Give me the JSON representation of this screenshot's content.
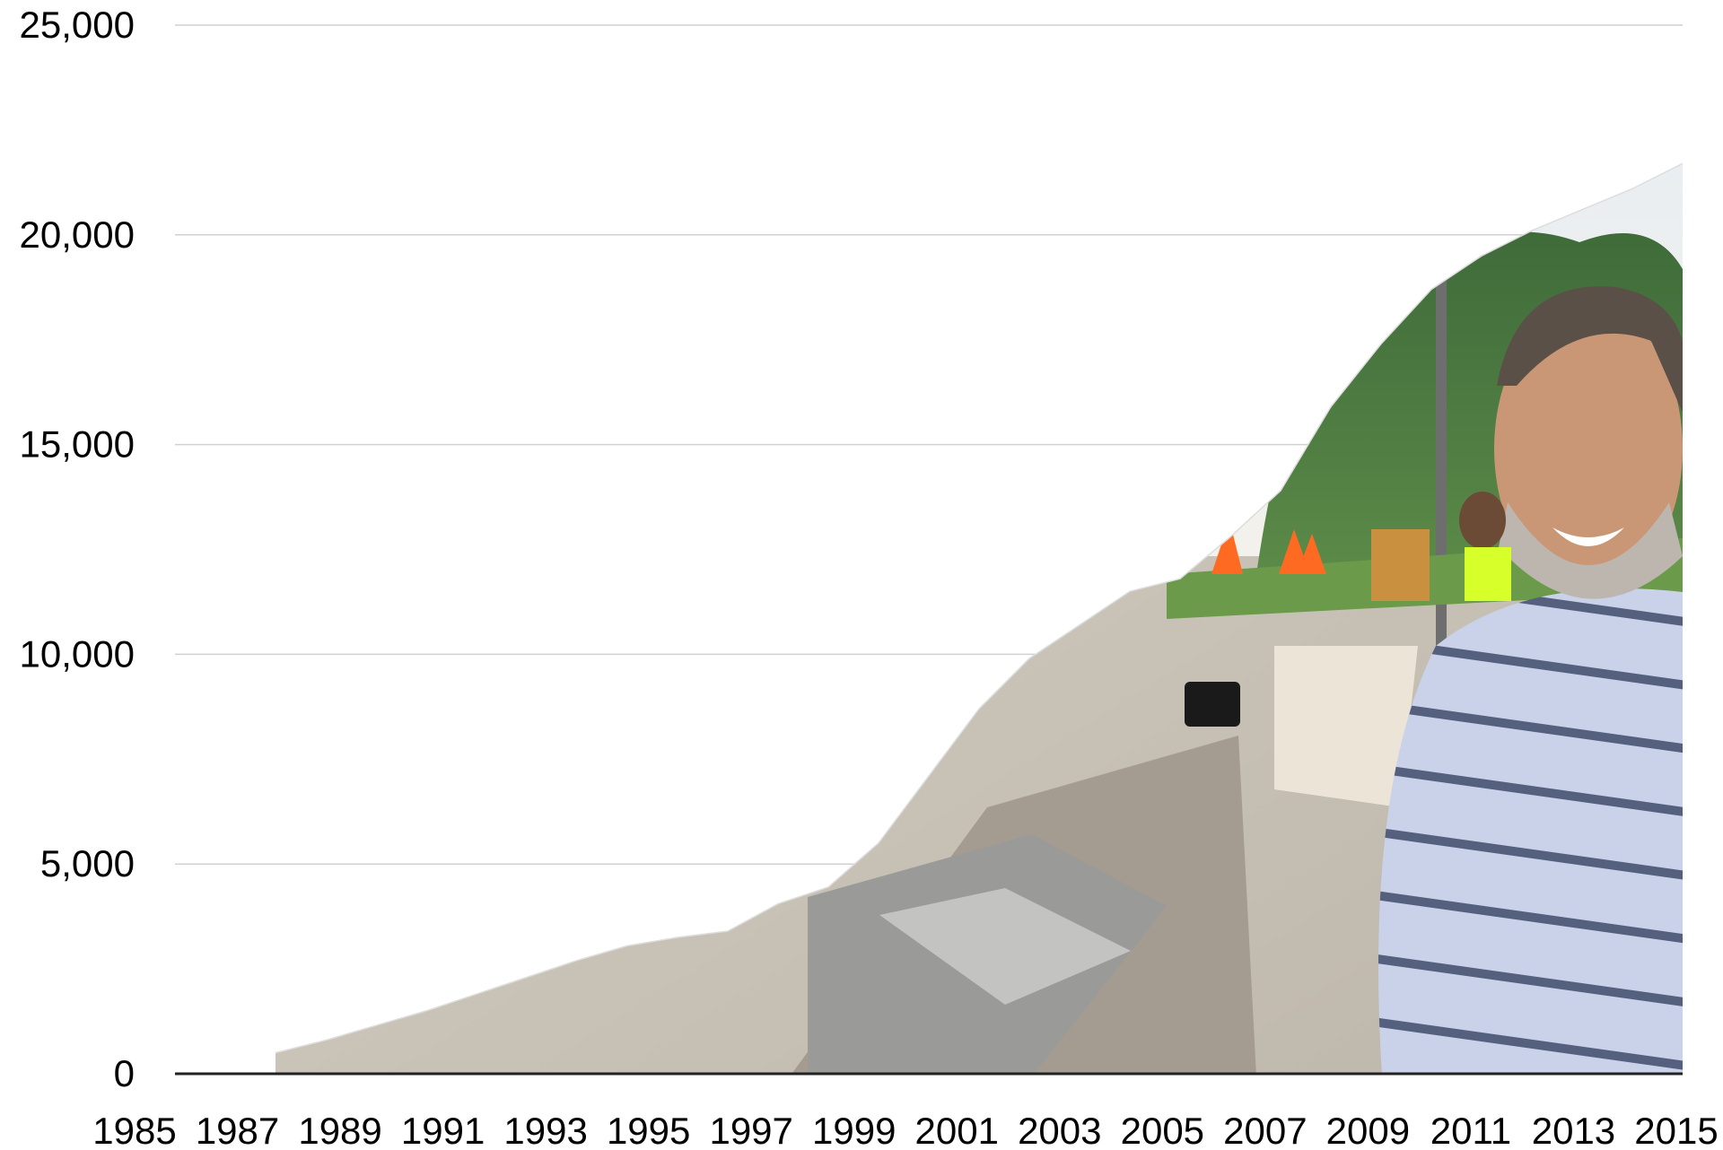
{
  "chart_data": {
    "type": "area",
    "title": "",
    "xlabel": "",
    "ylabel": "",
    "x_tick_labels": [
      "1985",
      "1987",
      "1989",
      "1991",
      "1993",
      "1995",
      "1997",
      "1999",
      "2001",
      "2003",
      "2005",
      "2007",
      "2009",
      "2011",
      "2013",
      "2015"
    ],
    "y_tick_labels": [
      "0",
      "5,000",
      "10,000",
      "15,000",
      "20,000",
      "25,000"
    ],
    "xlim": [
      1985,
      2015
    ],
    "ylim": [
      0,
      25000
    ],
    "y_ticks": [
      0,
      5000,
      10000,
      15000,
      20000,
      25000
    ],
    "grid": true,
    "fill_style": "photo of a smiling man at a sidewalk construction site with traffic cones and trees",
    "series": [
      {
        "x": [
          1987,
          1988,
          1989,
          1990,
          1991,
          1992,
          1993,
          1994,
          1995,
          1996,
          1997,
          1998,
          1999,
          2000,
          2001,
          2002,
          2003,
          2004,
          2005,
          2006,
          2007,
          2008,
          2009,
          2010,
          2011,
          2012,
          2013,
          2014,
          2015
        ],
        "values": [
          500,
          800,
          1150,
          1500,
          1900,
          2300,
          2700,
          3050,
          3250,
          3400,
          4050,
          4450,
          5500,
          7100,
          8700,
          9900,
          10700,
          11500,
          11800,
          12800,
          13900,
          15900,
          17400,
          18700,
          19500,
          20100,
          20600,
          21100,
          21700
        ]
      }
    ]
  }
}
